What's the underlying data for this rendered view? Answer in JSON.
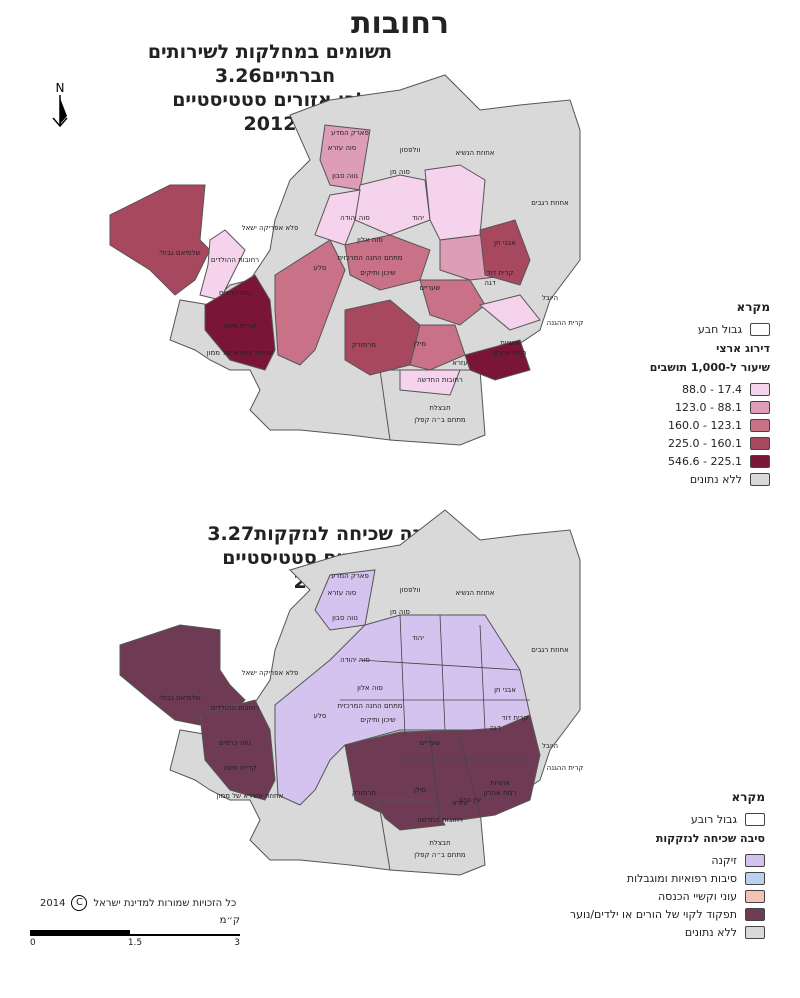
{
  "city_title": "רחובות",
  "map1": {
    "number": "3.26",
    "title_line1": "תשומים במחלקות לשירותים חברתיים",
    "title_line2": "לפי אזורים סטטיסטיים",
    "year": "2012",
    "legend": {
      "title": "מקרא",
      "boundary": "גבול חבע",
      "rank": "דירוג ארצי",
      "rate": "שיעור ל-1,000 תושבים",
      "classes": [
        {
          "label": "17.4 - 88.0",
          "color": "#f6d3ec"
        },
        {
          "label": "88.1 - 123.0",
          "color": "#dd9db6"
        },
        {
          "label": "123.1 - 160.0",
          "color": "#c97187"
        },
        {
          "label": "160.1 - 225.0",
          "color": "#a8485e"
        },
        {
          "label": "225.1 - 546.6",
          "color": "#7a1537"
        }
      ],
      "no_data": {
        "label": "ללא נתונים",
        "color": "#d9d9d9"
      }
    }
  },
  "map2": {
    "number": "3.27",
    "title_line1": "סיבה שכיחה לנזקקות",
    "title_line2": "לפי אזורים סטטיסטיים",
    "year": "2012",
    "legend": {
      "title": "מקרא",
      "boundary": "גבול רובע",
      "reason_title": "סיבה שכיחה לנזקקות",
      "classes": [
        {
          "label": "זיקנה",
          "color": "#d5c3ef"
        },
        {
          "label": "סיבות רפואיות ומוגבלות",
          "color": "#b9d2ef"
        },
        {
          "label": "עוני וקשיי הכנסה",
          "color": "#f2c2b4"
        },
        {
          "label": "תפקוד לקוי של הורים או ילדים/נוער",
          "color": "#6f3a54"
        },
        {
          "label": "ללא נתונים",
          "color": "#d9d9d9"
        }
      ]
    }
  },
  "place_labels": [
    "פארק המדע",
    "וולפסון",
    "אחוזת הנשיא",
    "סוה עזרא",
    "נווה סבון",
    "סוה מן",
    "יהוד",
    "סוה יהודה",
    "פלא אפריקה ישאל",
    "אחוזת רגבים",
    "אבני חן",
    "סוה אלון",
    "מתחם החנה המרכזית",
    "שלמיאם גבולי",
    "רחובות ההולדים",
    "סלע",
    "שיכון ותיקים",
    "קריית משה",
    "היובל",
    "נווה כרמים",
    "שעריים",
    "קרית ההגנה",
    "מרמורק",
    "מילן",
    "עזרא",
    "רחובות החדשה",
    "אחוזת עשירא של ממון",
    "חבצלת",
    "מתחם ב״ה קפלן",
    "קרית דוד",
    "אושיות",
    "רמת אהרון",
    "דגה",
    "עין גנים",
    "קרית מגדל"
  ],
  "north_arrow": "N",
  "copyright": "כל הזכויות שמורות למדינת ישראל",
  "copyright_year": "2014",
  "scale": {
    "unit": "ק״מ",
    "ticks": [
      "0",
      "1.5",
      "3"
    ]
  }
}
